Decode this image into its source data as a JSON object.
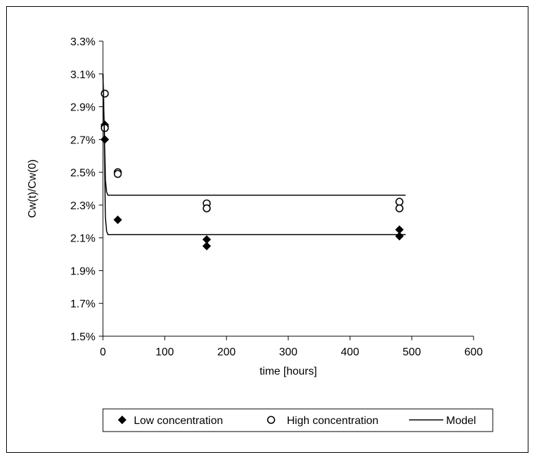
{
  "chart_data": {
    "type": "scatter",
    "title": "",
    "xlabel": "time [hours]",
    "ylabel": "Cw(t)/Cw(0)",
    "xlim": [
      0,
      600
    ],
    "ylim": [
      0.015,
      0.033
    ],
    "x_ticks": [
      0,
      100,
      200,
      300,
      400,
      500,
      600
    ],
    "x_tick_labels": [
      "0",
      "100",
      "200",
      "300",
      "400",
      "500",
      "600"
    ],
    "y_ticks": [
      0.015,
      0.017,
      0.019,
      0.021,
      0.023,
      0.025,
      0.027,
      0.029,
      0.031,
      0.033
    ],
    "y_tick_labels": [
      "1.5%",
      "1.7%",
      "1.9%",
      "2.1%",
      "2.3%",
      "2.5%",
      "2.7%",
      "2.9%",
      "3.1%",
      "3.3%"
    ],
    "grid": false,
    "legend_position": "bottom",
    "series": [
      {
        "name": "Low concentration",
        "marker": "diamond",
        "color": "#000000",
        "x": [
          3,
          3,
          3,
          24,
          168,
          168,
          480,
          480
        ],
        "y": [
          0.0279,
          0.0278,
          0.027,
          0.0221,
          0.0209,
          0.0205,
          0.0215,
          0.0211
        ]
      },
      {
        "name": "High concentration",
        "marker": "circle-open",
        "color": "#000000",
        "x": [
          3,
          3,
          24,
          24,
          168,
          168,
          480,
          480
        ],
        "y": [
          0.0298,
          0.0277,
          0.025,
          0.0249,
          0.0231,
          0.0228,
          0.0232,
          0.0228
        ]
      },
      {
        "name": "Model",
        "marker": "line",
        "color": "#000000",
        "curves": [
          {
            "x": [
              0,
              2,
              4,
              6,
              8,
              490
            ],
            "y": [
              0.031,
              0.028,
              0.0245,
              0.0238,
              0.0236,
              0.0236
            ]
          },
          {
            "x": [
              0,
              2,
              4,
              6,
              8,
              490
            ],
            "y": [
              0.031,
              0.0275,
              0.0222,
              0.0214,
              0.0212,
              0.0212
            ]
          }
        ]
      }
    ]
  }
}
